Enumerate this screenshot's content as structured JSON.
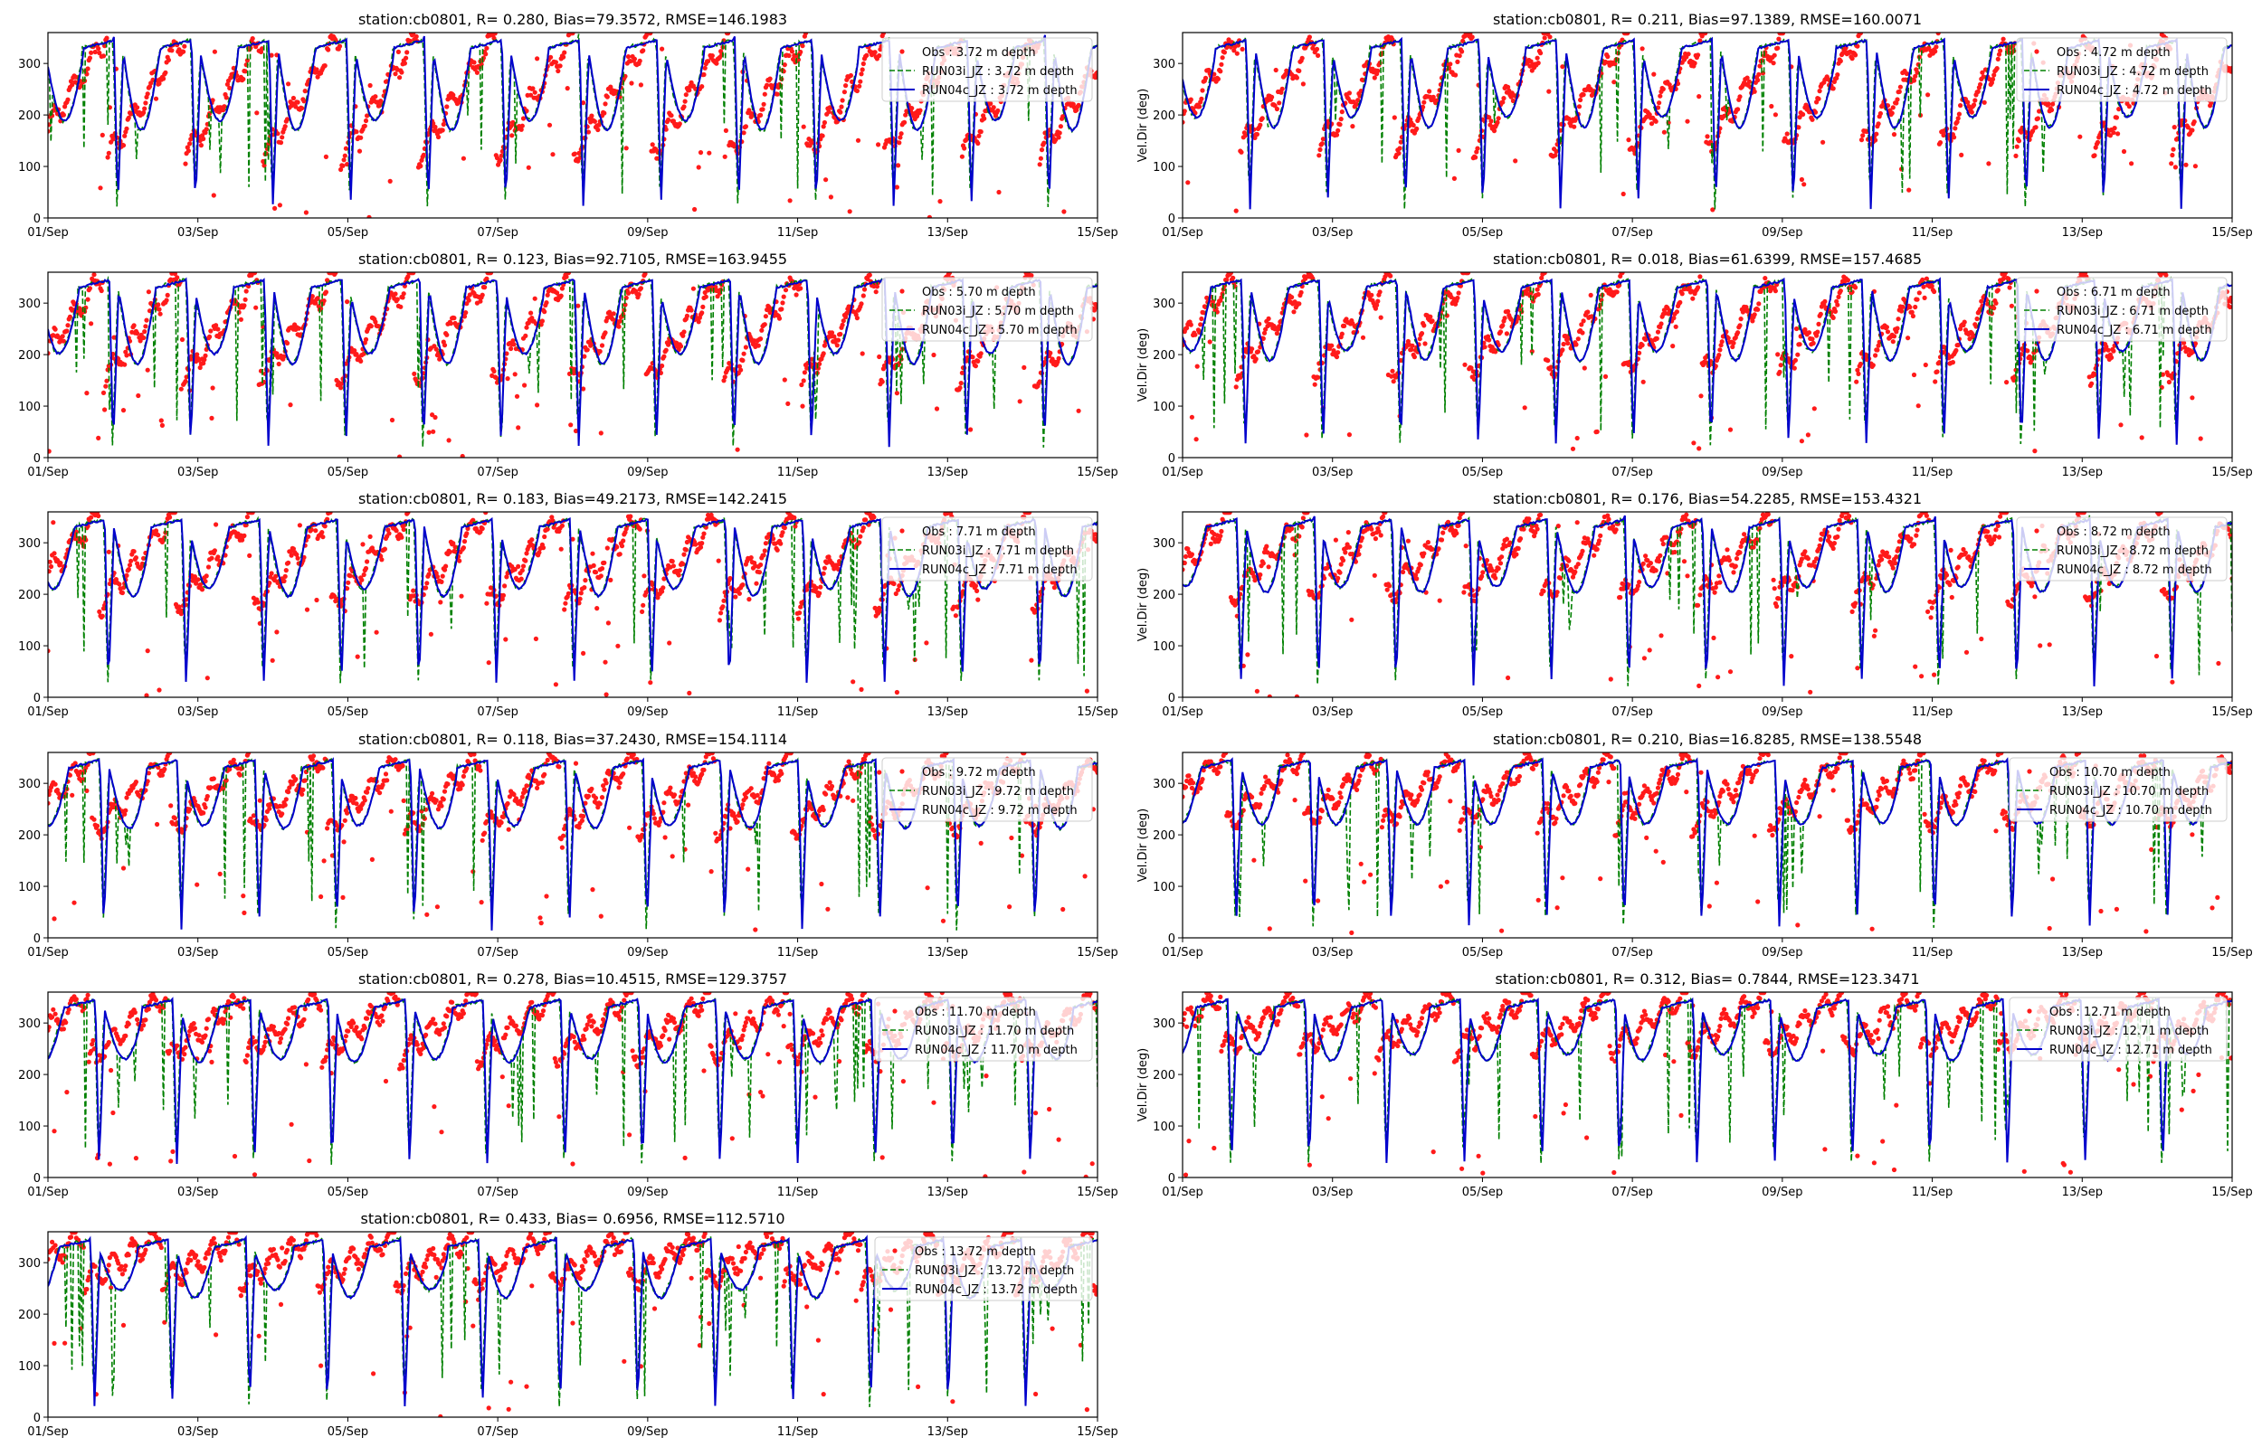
{
  "figure": {
    "shared": {
      "type": "line",
      "ylabel": "Vel.Dir (deg)",
      "ylim": [
        0,
        360
      ],
      "yticks": [
        0,
        100,
        200,
        300
      ],
      "xlim": [
        0,
        14
      ],
      "xtick_positions": [
        0,
        2,
        4,
        6,
        8,
        10,
        12,
        14
      ],
      "xtick_labels": [
        "01/Sep",
        "03/Sep",
        "05/Sep",
        "07/Sep",
        "09/Sep",
        "11/Sep",
        "13/Sep",
        "15/Sep"
      ],
      "legend_position": "top-right",
      "grid": false,
      "series_styles": [
        {
          "key": "obs",
          "color": "#ff0000",
          "style": "dots"
        },
        {
          "key": "run03i",
          "color": "#008000",
          "style": "dashed"
        },
        {
          "key": "run04c",
          "color": "#0000cc",
          "style": "solid"
        }
      ]
    }
  },
  "chart_data": [
    {
      "type": "line",
      "title": "station:cb0801, R= 0.280, Bias=79.3572, RMSE=146.1983",
      "ylabel": "",
      "depth": 3.72,
      "col": 0,
      "row": 0,
      "legend": [
        "Obs : 3.72 m depth",
        "RUN03i_JZ : 3.72 m depth",
        "RUN04c_JZ : 3.72 m depth"
      ]
    },
    {
      "type": "line",
      "title": "station:cb0801, R= 0.211, Bias=97.1389, RMSE=160.0071",
      "ylabel": "Vel.Dir (deg)",
      "depth": 4.72,
      "col": 1,
      "row": 0,
      "legend": [
        "Obs : 4.72 m depth",
        "RUN03i_JZ : 4.72 m depth",
        "RUN04c_JZ : 4.72 m depth"
      ]
    },
    {
      "type": "line",
      "title": "station:cb0801, R= 0.123, Bias=92.7105, RMSE=163.9455",
      "ylabel": "",
      "depth": 5.7,
      "col": 0,
      "row": 1,
      "legend": [
        "Obs : 5.70 m depth",
        "RUN03i_JZ : 5.70 m depth",
        "RUN04c_JZ : 5.70 m depth"
      ]
    },
    {
      "type": "line",
      "title": "station:cb0801, R= 0.018, Bias=61.6399, RMSE=157.4685",
      "ylabel": "Vel.Dir (deg)",
      "depth": 6.71,
      "col": 1,
      "row": 1,
      "legend": [
        "Obs : 6.71 m depth",
        "RUN03i_JZ : 6.71 m depth",
        "RUN04c_JZ : 6.71 m depth"
      ]
    },
    {
      "type": "line",
      "title": "station:cb0801, R= 0.183, Bias=49.2173, RMSE=142.2415",
      "ylabel": "",
      "depth": 7.71,
      "col": 0,
      "row": 2,
      "legend": [
        "Obs : 7.71 m depth",
        "RUN03i_JZ : 7.71 m depth",
        "RUN04c_JZ : 7.71 m depth"
      ]
    },
    {
      "type": "line",
      "title": "station:cb0801, R= 0.176, Bias=54.2285, RMSE=153.4321",
      "ylabel": "Vel.Dir (deg)",
      "depth": 8.72,
      "col": 1,
      "row": 2,
      "legend": [
        "Obs : 8.72 m depth",
        "RUN03i_JZ : 8.72 m depth",
        "RUN04c_JZ : 8.72 m depth"
      ]
    },
    {
      "type": "line",
      "title": "station:cb0801, R= 0.118, Bias=37.2430, RMSE=154.1114",
      "ylabel": "",
      "depth": 9.72,
      "col": 0,
      "row": 3,
      "legend": [
        "Obs : 9.72 m depth",
        "RUN03i_JZ : 9.72 m depth",
        "RUN04c_JZ : 9.72 m depth"
      ]
    },
    {
      "type": "line",
      "title": "station:cb0801, R= 0.210, Bias=16.8285, RMSE=138.5548",
      "ylabel": "Vel.Dir (deg)",
      "depth": 10.7,
      "col": 1,
      "row": 3,
      "legend": [
        "Obs : 10.70 m depth",
        "RUN03i_JZ : 10.70 m depth",
        "RUN04c_JZ : 10.70 m depth"
      ]
    },
    {
      "type": "line",
      "title": "station:cb0801, R= 0.278, Bias=10.4515, RMSE=129.3757",
      "ylabel": "",
      "depth": 11.7,
      "col": 0,
      "row": 4,
      "legend": [
        "Obs : 11.70 m depth",
        "RUN03i_JZ : 11.70 m depth",
        "RUN04c_JZ : 11.70 m depth"
      ]
    },
    {
      "type": "line",
      "title": "station:cb0801, R= 0.312, Bias= 0.7844, RMSE=123.3471",
      "ylabel": "Vel.Dir (deg)",
      "depth": 12.71,
      "col": 1,
      "row": 4,
      "legend": [
        "Obs : 12.71 m depth",
        "RUN03i_JZ : 12.71 m depth",
        "RUN04c_JZ : 12.71 m depth"
      ]
    },
    {
      "type": "line",
      "title": "station:cb0801, R= 0.433, Bias= 0.6956, RMSE=112.5710",
      "ylabel": "",
      "depth": 13.72,
      "col": 0,
      "row": 5,
      "legend": [
        "Obs : 13.72 m depth",
        "RUN03i_JZ : 13.72 m depth",
        "RUN04c_JZ : 13.72 m depth"
      ]
    }
  ]
}
